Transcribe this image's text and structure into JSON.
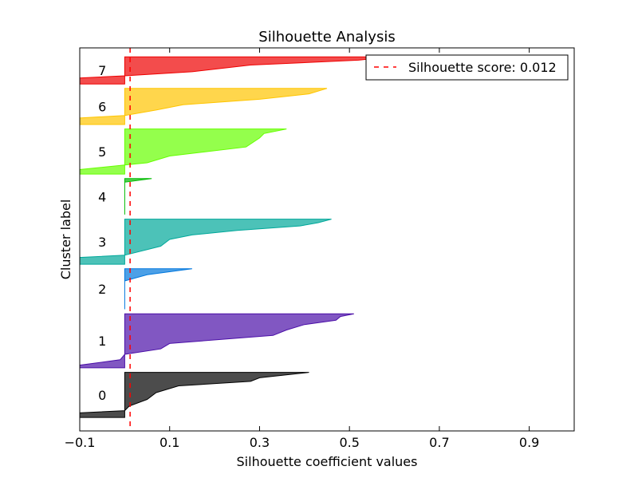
{
  "chart_data": {
    "type": "area",
    "title": "Silhouette Analysis",
    "xlabel": "Silhouette coefficient values",
    "ylabel": "Cluster label",
    "xlim": [
      -0.1,
      1.0
    ],
    "xticks": [
      -0.1,
      0.1,
      0.3,
      0.5,
      0.7,
      0.9
    ],
    "xtick_labels": [
      "−0.1",
      "0.1",
      "0.3",
      "0.5",
      "0.7",
      "0.9"
    ],
    "ylim": [
      0,
      850
    ],
    "legend": {
      "position": "top-right",
      "entries": [
        "Silhouette score: 0.012"
      ]
    },
    "silhouette_score": 0.012,
    "score_line_color": "#ff0000",
    "clusters": [
      {
        "label": "0",
        "color": "#000000",
        "y_lower": 30,
        "profile": [
          [
            0,
            0.41
          ],
          [
            0.12,
            0.3
          ],
          [
            0.2,
            0.28
          ],
          [
            0.3,
            0.12
          ],
          [
            0.45,
            0.07
          ],
          [
            0.6,
            0.05
          ],
          [
            0.75,
            0.01
          ],
          [
            0.85,
            0.0
          ],
          [
            0.9,
            -0.1
          ],
          [
            1,
            -0.1
          ]
        ]
      },
      {
        "label": "1",
        "color": "#4b0fa8",
        "y_lower": 140,
        "profile": [
          [
            0,
            0.51
          ],
          [
            0.05,
            0.48
          ],
          [
            0.12,
            0.47
          ],
          [
            0.2,
            0.4
          ],
          [
            0.3,
            0.36
          ],
          [
            0.4,
            0.33
          ],
          [
            0.55,
            0.1
          ],
          [
            0.65,
            0.08
          ],
          [
            0.75,
            0.0
          ],
          [
            0.85,
            -0.01
          ],
          [
            0.95,
            -0.1
          ],
          [
            1,
            -0.1
          ]
        ]
      },
      {
        "label": "2",
        "color": "#0077dd",
        "y_lower": 270,
        "profile": [
          [
            0,
            0.15
          ],
          [
            0.15,
            0.05
          ],
          [
            0.3,
            0.0
          ],
          [
            1,
            0.0
          ]
        ]
      },
      {
        "label": "3",
        "color": "#00a89a",
        "y_lower": 370,
        "profile": [
          [
            0,
            0.46
          ],
          [
            0.08,
            0.43
          ],
          [
            0.15,
            0.39
          ],
          [
            0.25,
            0.25
          ],
          [
            0.35,
            0.15
          ],
          [
            0.45,
            0.1
          ],
          [
            0.6,
            0.08
          ],
          [
            0.8,
            0.0
          ],
          [
            0.85,
            -0.1
          ],
          [
            1,
            -0.1
          ]
        ]
      },
      {
        "label": "4",
        "color": "#00bb00",
        "y_lower": 480,
        "profile": [
          [
            0,
            0.06
          ],
          [
            0.1,
            0.0
          ],
          [
            1,
            0.0
          ]
        ]
      },
      {
        "label": "5",
        "color": "#66ff00",
        "y_lower": 570,
        "profile": [
          [
            0,
            0.36
          ],
          [
            0.1,
            0.31
          ],
          [
            0.2,
            0.3
          ],
          [
            0.4,
            0.27
          ],
          [
            0.6,
            0.1
          ],
          [
            0.75,
            0.05
          ],
          [
            0.8,
            0.0
          ],
          [
            0.9,
            -0.1
          ],
          [
            1,
            -0.1
          ]
        ]
      },
      {
        "label": "6",
        "color": "#ffc500",
        "y_lower": 680,
        "profile": [
          [
            0,
            0.45
          ],
          [
            0.15,
            0.41
          ],
          [
            0.3,
            0.3
          ],
          [
            0.45,
            0.13
          ],
          [
            0.6,
            0.07
          ],
          [
            0.75,
            0.0
          ],
          [
            0.82,
            -0.1
          ],
          [
            1,
            -0.1
          ]
        ]
      },
      {
        "label": "7",
        "color": "#ee0000",
        "y_lower": 770,
        "profile": [
          [
            0,
            0.59
          ],
          [
            0.12,
            0.52
          ],
          [
            0.3,
            0.28
          ],
          [
            0.55,
            0.15
          ],
          [
            0.7,
            0.0
          ],
          [
            0.78,
            -0.1
          ],
          [
            1,
            -0.1
          ]
        ]
      }
    ]
  }
}
